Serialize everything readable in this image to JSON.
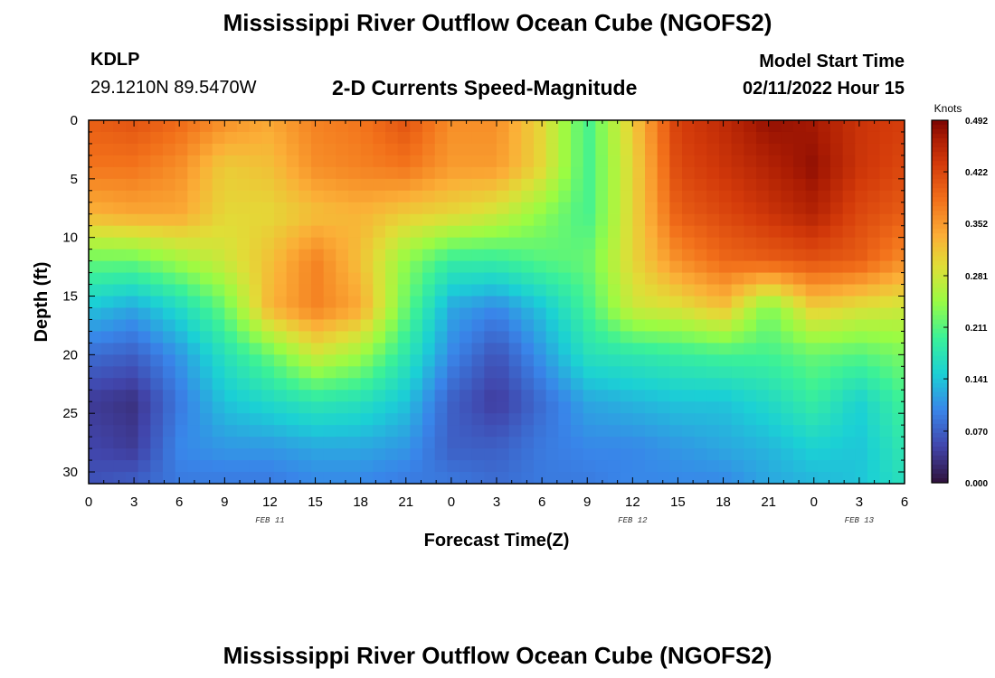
{
  "header": {
    "title": "Mississippi River Outflow Ocean Cube (NGOFS2)",
    "station_id": "KDLP",
    "coordinates": "29.1210N  89.5470W",
    "subtitle": "2-D Currents Speed-Magnitude",
    "model_start_label": "Model Start Time",
    "model_start_value": "02/11/2022 Hour 15"
  },
  "footer": {
    "title": "Mississippi River Outflow Ocean Cube (NGOFS2)"
  },
  "chart_data": {
    "type": "heatmap",
    "title": "2-D Currents Speed-Magnitude",
    "xlabel": "Forecast Time(Z)",
    "ylabel": "Depth (ft)",
    "x_range": [
      0,
      54
    ],
    "y_range": [
      0,
      31
    ],
    "x_ticks": [
      0,
      3,
      6,
      9,
      12,
      15,
      18,
      21,
      24,
      27,
      30,
      33,
      36,
      39,
      42,
      45,
      48,
      51,
      54
    ],
    "x_tick_labels": [
      "0",
      "3",
      "6",
      "9",
      "12",
      "15",
      "18",
      "21",
      "0",
      "3",
      "6",
      "9",
      "12",
      "15",
      "18",
      "21",
      "0",
      "3",
      "6"
    ],
    "y_ticks": [
      0,
      5,
      10,
      15,
      20,
      25,
      30
    ],
    "y_tick_labels": [
      "0",
      "5",
      "10",
      "15",
      "20",
      "25",
      "30"
    ],
    "date_labels": [
      {
        "label": "FEB 11",
        "hour": 12
      },
      {
        "label": "FEB 12",
        "hour": 36
      },
      {
        "label": "FEB 13",
        "hour": 51
      }
    ],
    "colorbar": {
      "unit": "Knots",
      "min": 0.0,
      "max": 0.492,
      "tick_values": [
        0.492,
        0.422,
        0.352,
        0.281,
        0.211,
        0.141,
        0.07,
        0.0
      ],
      "tick_labels": [
        "0.492",
        "0.422",
        "0.352",
        "0.281",
        "0.211",
        "0.141",
        "0.070",
        "0.000"
      ]
    },
    "grid": {
      "hours": [
        0,
        3,
        6,
        9,
        12,
        15,
        18,
        21,
        24,
        27,
        30,
        33,
        36,
        39,
        42,
        45,
        48,
        51,
        54
      ],
      "depths": [
        0,
        4,
        8,
        12,
        16,
        20,
        24,
        28,
        31
      ],
      "speed_knots": [
        [
          0.4,
          0.41,
          0.39,
          0.36,
          0.34,
          0.37,
          0.38,
          0.41,
          0.36,
          0.36,
          0.3,
          0.2,
          0.31,
          0.43,
          0.45,
          0.48,
          0.47,
          0.44,
          0.43
        ],
        [
          0.38,
          0.38,
          0.36,
          0.31,
          0.32,
          0.36,
          0.37,
          0.38,
          0.35,
          0.35,
          0.3,
          0.2,
          0.3,
          0.42,
          0.44,
          0.46,
          0.48,
          0.44,
          0.42
        ],
        [
          0.33,
          0.34,
          0.34,
          0.3,
          0.3,
          0.32,
          0.33,
          0.31,
          0.3,
          0.28,
          0.24,
          0.2,
          0.3,
          0.4,
          0.42,
          0.44,
          0.46,
          0.42,
          0.4
        ],
        [
          0.22,
          0.22,
          0.25,
          0.28,
          0.32,
          0.37,
          0.32,
          0.24,
          0.19,
          0.19,
          0.21,
          0.22,
          0.3,
          0.36,
          0.39,
          0.4,
          0.41,
          0.4,
          0.36
        ],
        [
          0.14,
          0.12,
          0.16,
          0.22,
          0.33,
          0.37,
          0.34,
          0.22,
          0.12,
          0.1,
          0.14,
          0.2,
          0.28,
          0.29,
          0.32,
          0.23,
          0.31,
          0.29,
          0.28
        ],
        [
          0.08,
          0.07,
          0.11,
          0.17,
          0.22,
          0.28,
          0.25,
          0.18,
          0.1,
          0.06,
          0.11,
          0.17,
          0.18,
          0.19,
          0.2,
          0.2,
          0.22,
          0.21,
          0.23
        ],
        [
          0.04,
          0.03,
          0.09,
          0.14,
          0.16,
          0.18,
          0.17,
          0.14,
          0.07,
          0.04,
          0.08,
          0.12,
          0.13,
          0.14,
          0.14,
          0.16,
          0.19,
          0.15,
          0.2
        ],
        [
          0.05,
          0.04,
          0.1,
          0.11,
          0.11,
          0.12,
          0.12,
          0.11,
          0.07,
          0.07,
          0.09,
          0.1,
          0.1,
          0.11,
          0.12,
          0.13,
          0.15,
          0.14,
          0.18
        ],
        [
          0.06,
          0.07,
          0.09,
          0.09,
          0.09,
          0.1,
          0.1,
          0.09,
          0.09,
          0.08,
          0.09,
          0.09,
          0.1,
          0.1,
          0.1,
          0.12,
          0.13,
          0.14,
          0.17
        ]
      ]
    }
  }
}
